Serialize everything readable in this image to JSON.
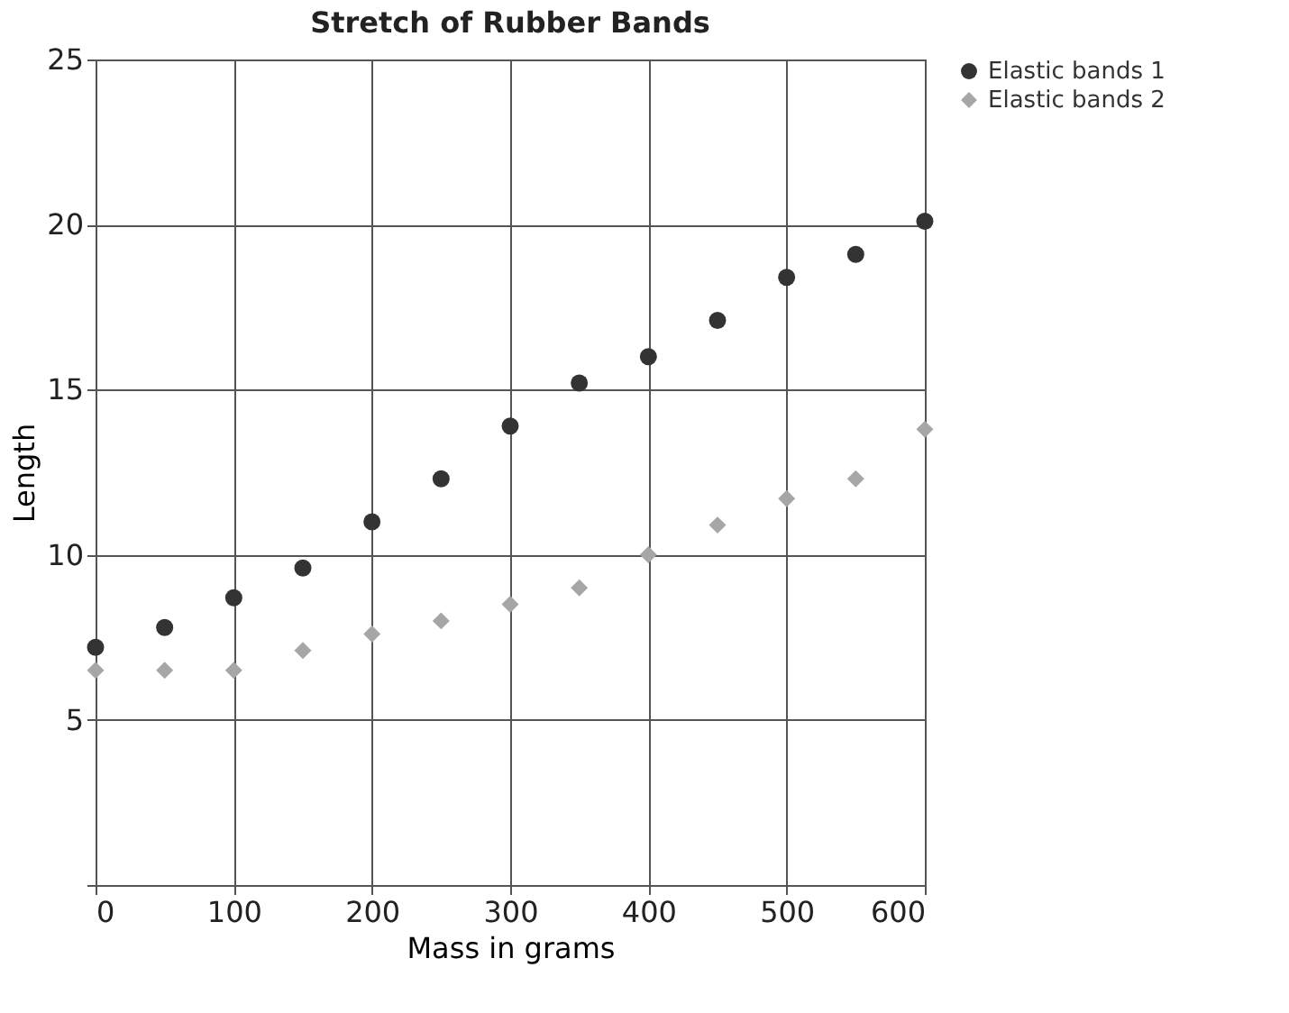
{
  "chart_data": {
    "type": "scatter",
    "title": "Stretch of Rubber Bands",
    "xlabel": "Mass in grams",
    "ylabel": "Length",
    "x": [
      0,
      50,
      100,
      150,
      200,
      250,
      300,
      350,
      400,
      450,
      500,
      550,
      600
    ],
    "series": [
      {
        "name": "Elastic bands 1",
        "color": "#333333",
        "marker": "circle",
        "values": [
          7.2,
          7.8,
          8.7,
          9.6,
          11.0,
          12.3,
          13.9,
          15.2,
          16.0,
          17.1,
          18.4,
          19.1,
          20.1
        ]
      },
      {
        "name": "Elastic bands 2",
        "color": "#a6a6a6",
        "marker": "diamond",
        "values": [
          6.5,
          6.5,
          6.5,
          7.1,
          7.6,
          8.0,
          8.5,
          9.0,
          10.0,
          10.9,
          11.7,
          12.3,
          13.8
        ]
      }
    ],
    "xlim": [
      0,
      600
    ],
    "xticks": [
      0,
      100,
      200,
      300,
      400,
      500,
      600
    ],
    "ylim": [
      0,
      25
    ],
    "yticks": [
      {
        "value": 0,
        "label": null
      },
      5,
      10,
      15,
      20,
      25
    ],
    "grid": true,
    "legend": "top right"
  }
}
